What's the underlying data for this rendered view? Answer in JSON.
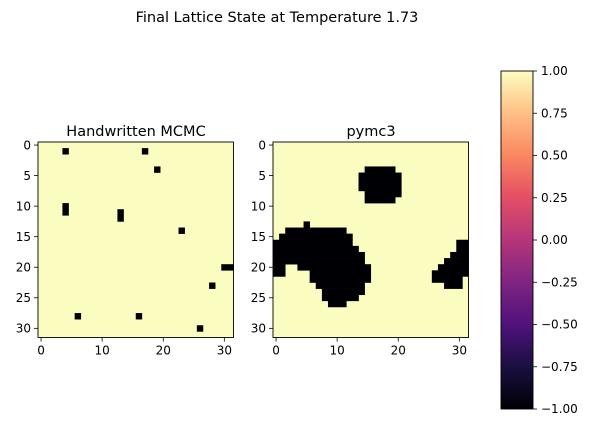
{
  "figure": {
    "suptitle": "Final Lattice State at Temperature 1.73"
  },
  "chart_data": [
    {
      "type": "heatmap",
      "title": "Handwritten MCMC",
      "grid_size": 32,
      "x_ticks": [
        0,
        10,
        20,
        30
      ],
      "y_ticks": [
        0,
        5,
        10,
        15,
        20,
        25,
        30
      ],
      "values_range": [
        -1,
        1
      ],
      "background_value": 1,
      "spin_down_rows": [
        [
          1,
          [
            [
              4,
              4
            ],
            [
              17,
              17
            ]
          ]
        ],
        [
          4,
          [
            [
              19,
              19
            ]
          ]
        ],
        [
          10,
          [
            [
              4,
              4
            ]
          ]
        ],
        [
          11,
          [
            [
              4,
              4
            ],
            [
              13,
              13
            ]
          ]
        ],
        [
          12,
          [
            [
              13,
              13
            ]
          ]
        ],
        [
          14,
          [
            [
              23,
              23
            ]
          ]
        ],
        [
          20,
          [
            [
              30,
              31
            ]
          ]
        ],
        [
          23,
          [
            [
              28,
              28
            ]
          ]
        ],
        [
          28,
          [
            [
              6,
              6
            ],
            [
              16,
              16
            ]
          ]
        ],
        [
          30,
          [
            [
              26,
              26
            ]
          ]
        ]
      ]
    },
    {
      "type": "heatmap",
      "title": "pymc3",
      "grid_size": 32,
      "x_ticks": [
        0,
        10,
        20,
        30
      ],
      "y_ticks": [
        0,
        5,
        10,
        15,
        20,
        25,
        30
      ],
      "values_range": [
        -1,
        1
      ],
      "background_value": 1,
      "spin_down_rows": [
        [
          4,
          [
            [
              15,
              19
            ]
          ]
        ],
        [
          5,
          [
            [
              14,
              20
            ]
          ]
        ],
        [
          6,
          [
            [
              14,
              20
            ]
          ]
        ],
        [
          7,
          [
            [
              14,
              20
            ]
          ]
        ],
        [
          8,
          [
            [
              15,
              20
            ]
          ]
        ],
        [
          9,
          [
            [
              15,
              19
            ]
          ]
        ],
        [
          13,
          [
            [
              5,
              5
            ]
          ]
        ],
        [
          14,
          [
            [
              2,
              11
            ]
          ]
        ],
        [
          15,
          [
            [
              1,
              12
            ]
          ]
        ],
        [
          16,
          [
            [
              0,
              12
            ],
            [
              30,
              31
            ]
          ]
        ],
        [
          17,
          [
            [
              0,
              13
            ],
            [
              30,
              31
            ]
          ]
        ],
        [
          18,
          [
            [
              0,
              14
            ],
            [
              29,
              31
            ]
          ]
        ],
        [
          19,
          [
            [
              0,
              14
            ],
            [
              28,
              31
            ]
          ]
        ],
        [
          20,
          [
            [
              0,
              1
            ],
            [
              4,
              15
            ],
            [
              27,
              31
            ]
          ]
        ],
        [
          21,
          [
            [
              0,
              1
            ],
            [
              6,
              15
            ],
            [
              26,
              31
            ]
          ]
        ],
        [
          22,
          [
            [
              6,
              15
            ],
            [
              26,
              30
            ]
          ]
        ],
        [
          23,
          [
            [
              7,
              14
            ],
            [
              28,
              30
            ]
          ]
        ],
        [
          24,
          [
            [
              8,
              14
            ]
          ]
        ],
        [
          25,
          [
            [
              8,
              13
            ]
          ]
        ],
        [
          26,
          [
            [
              9,
              11
            ]
          ]
        ]
      ]
    },
    {
      "type": "colorbar",
      "colormap": "magma",
      "range": [
        -1,
        1
      ],
      "ticks": [
        "1.00",
        "0.75",
        "0.50",
        "0.25",
        "0.00",
        "−0.25",
        "−0.50",
        "−0.75",
        "−1.00"
      ],
      "tick_values": [
        1,
        0.75,
        0.5,
        0.25,
        0,
        -0.25,
        -0.5,
        -0.75,
        -1
      ]
    }
  ],
  "colors": {
    "spin_up": "#fbfcbf",
    "spin_down": "#000004"
  }
}
